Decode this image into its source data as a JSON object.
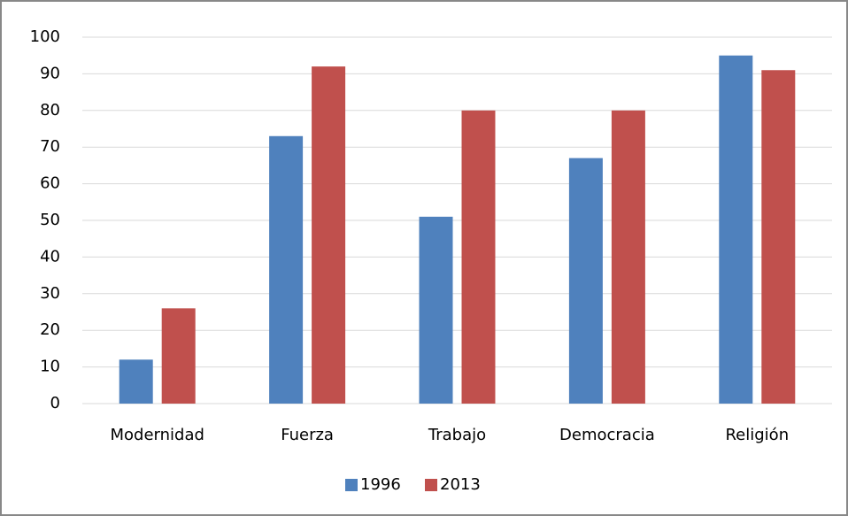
{
  "chart_data": {
    "type": "bar",
    "categories": [
      "Modernidad",
      "Fuerza",
      "Trabajo",
      "Democracia",
      "Religión"
    ],
    "series": [
      {
        "name": "1996",
        "color": "#4f81bd",
        "values": [
          12,
          73,
          51,
          67,
          95
        ]
      },
      {
        "name": "2013",
        "color": "#c0504d",
        "values": [
          26,
          92,
          80,
          80,
          91
        ]
      }
    ],
    "ylim": [
      0,
      100
    ],
    "yticks": [
      0,
      10,
      20,
      30,
      40,
      50,
      60,
      70,
      80,
      90,
      100
    ],
    "grid": true,
    "legend": "bottom"
  }
}
